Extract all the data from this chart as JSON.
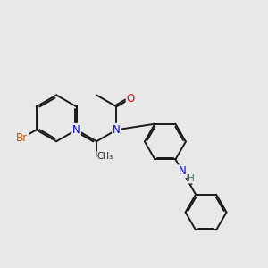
{
  "bg_color": "#e8e8e8",
  "bond_color": "#1a1a1a",
  "bond_width": 1.4,
  "atom_colors": {
    "N": "#0000ee",
    "O": "#ee0000",
    "Br": "#bb5500",
    "H": "#336666",
    "C": "#1a1a1a"
  },
  "font_size": 8.5,
  "fig_size": [
    3.0,
    3.0
  ],
  "dpi": 100
}
